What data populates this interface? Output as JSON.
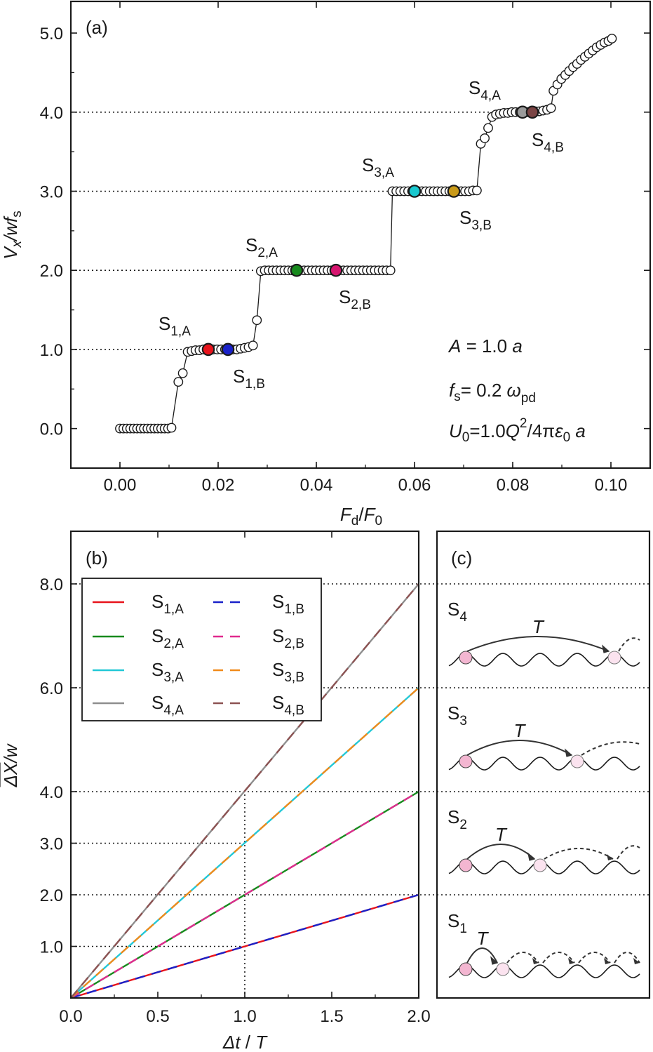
{
  "chart_data": [
    {
      "id": "a",
      "type": "scatter",
      "panel_label": "(a)",
      "xlabel": {
        "main": "F",
        "sub": "d",
        "sep": "/",
        "main2": "F",
        "sub2": "0"
      },
      "ylabel": {
        "main": "V",
        "sub": "x",
        "rest": "/wf",
        "sub2": "s"
      },
      "xlim": [
        -0.01,
        0.108
      ],
      "ylim": [
        -0.5,
        5.4
      ],
      "xticks": [
        0.0,
        0.02,
        0.04,
        0.06,
        0.08,
        0.1
      ],
      "xtick_labels": [
        "0.00",
        "0.02",
        "0.04",
        "0.06",
        "0.08",
        "0.10"
      ],
      "yticks": [
        0.0,
        1.0,
        2.0,
        3.0,
        4.0,
        5.0
      ],
      "ytick_labels": [
        "0.0",
        "1.0",
        "2.0",
        "3.0",
        "4.0",
        "5.0"
      ],
      "guide_levels": [
        1.0,
        2.0,
        3.0,
        4.0
      ],
      "series": [
        {
          "name": "Vx/wfs",
          "points": [
            [
              0.0,
              0
            ],
            [
              0.0007,
              0
            ],
            [
              0.0014,
              0
            ],
            [
              0.0021,
              0
            ],
            [
              0.0028,
              0
            ],
            [
              0.0035,
              0
            ],
            [
              0.0042,
              0
            ],
            [
              0.0049,
              0
            ],
            [
              0.0056,
              0
            ],
            [
              0.0063,
              0
            ],
            [
              0.007,
              0
            ],
            [
              0.0077,
              0
            ],
            [
              0.0084,
              0
            ],
            [
              0.0091,
              0
            ],
            [
              0.0098,
              0
            ],
            [
              0.0105,
              0.01
            ],
            [
              0.0119,
              0.59
            ],
            [
              0.0128,
              0.7
            ],
            [
              0.0138,
              0.97
            ],
            [
              0.0146,
              0.98
            ],
            [
              0.0154,
              0.99
            ],
            [
              0.0162,
              0.99
            ],
            [
              0.017,
              1.0
            ],
            [
              0.0178,
              1.0
            ],
            [
              0.019,
              1.0
            ],
            [
              0.0198,
              1.0
            ],
            [
              0.0206,
              1.0
            ],
            [
              0.0214,
              1.0
            ],
            [
              0.023,
              1.0
            ],
            [
              0.0238,
              1.0
            ],
            [
              0.0246,
              1.01
            ],
            [
              0.0254,
              1.02
            ],
            [
              0.0262,
              1.03
            ],
            [
              0.0271,
              1.05
            ],
            [
              0.0279,
              1.37
            ],
            [
              0.0287,
              1.99
            ],
            [
              0.0295,
              2.0
            ],
            [
              0.0303,
              2.0
            ],
            [
              0.0311,
              2.0
            ],
            [
              0.0319,
              2.0
            ],
            [
              0.0327,
              2.0
            ],
            [
              0.0335,
              2.0
            ],
            [
              0.0343,
              2.0
            ],
            [
              0.0351,
              2.0
            ],
            [
              0.0359,
              2.0
            ],
            [
              0.0375,
              2.0
            ],
            [
              0.0383,
              2.0
            ],
            [
              0.0391,
              2.0
            ],
            [
              0.0399,
              2.0
            ],
            [
              0.0407,
              2.0
            ],
            [
              0.0415,
              2.0
            ],
            [
              0.0423,
              2.0
            ],
            [
              0.0431,
              2.0
            ],
            [
              0.0447,
              2.0
            ],
            [
              0.0455,
              2.0
            ],
            [
              0.0463,
              2.0
            ],
            [
              0.0471,
              2.0
            ],
            [
              0.0479,
              2.0
            ],
            [
              0.0487,
              2.0
            ],
            [
              0.0495,
              2.0
            ],
            [
              0.0503,
              2.0
            ],
            [
              0.0511,
              2.0
            ],
            [
              0.0519,
              2.0
            ],
            [
              0.0527,
              2.0
            ],
            [
              0.0535,
              2.0
            ],
            [
              0.0543,
              2.0
            ],
            [
              0.0551,
              2.0
            ],
            [
              0.0555,
              3.0
            ],
            [
              0.0563,
              3.0
            ],
            [
              0.0571,
              3.0
            ],
            [
              0.0579,
              3.0
            ],
            [
              0.0587,
              3.0
            ],
            [
              0.0595,
              3.0
            ],
            [
              0.0607,
              3.0
            ],
            [
              0.0615,
              3.0
            ],
            [
              0.0623,
              3.0
            ],
            [
              0.0631,
              3.0
            ],
            [
              0.0639,
              3.0
            ],
            [
              0.0647,
              3.0
            ],
            [
              0.0655,
              3.0
            ],
            [
              0.0663,
              3.0
            ],
            [
              0.0671,
              3.0
            ],
            [
              0.0687,
              3.0
            ],
            [
              0.0695,
              3.0
            ],
            [
              0.0703,
              3.0
            ],
            [
              0.0711,
              3.0
            ],
            [
              0.0719,
              3.01
            ],
            [
              0.0727,
              3.01
            ],
            [
              0.0735,
              3.6
            ],
            [
              0.0743,
              3.67
            ],
            [
              0.075,
              3.8
            ],
            [
              0.0758,
              3.94
            ],
            [
              0.0766,
              3.97
            ],
            [
              0.0774,
              3.98
            ],
            [
              0.0782,
              3.99
            ],
            [
              0.079,
              3.99
            ],
            [
              0.0798,
              4.0
            ],
            [
              0.0806,
              4.0
            ],
            [
              0.0814,
              4.0
            ],
            [
              0.083,
              4.0
            ],
            [
              0.0846,
              4.01
            ],
            [
              0.0854,
              4.01
            ],
            [
              0.0862,
              4.02
            ],
            [
              0.087,
              4.03
            ],
            [
              0.0878,
              4.05
            ],
            [
              0.0883,
              4.27
            ],
            [
              0.0891,
              4.35
            ],
            [
              0.0899,
              4.42
            ],
            [
              0.0907,
              4.47
            ],
            [
              0.0915,
              4.52
            ],
            [
              0.0923,
              4.57
            ],
            [
              0.0931,
              4.61
            ],
            [
              0.0939,
              4.66
            ],
            [
              0.0947,
              4.7
            ],
            [
              0.0955,
              4.74
            ],
            [
              0.0963,
              4.78
            ],
            [
              0.0971,
              4.82
            ],
            [
              0.0979,
              4.85
            ],
            [
              0.0987,
              4.88
            ],
            [
              0.0995,
              4.9
            ],
            [
              0.1002,
              4.93
            ]
          ]
        }
      ],
      "highlights": [
        {
          "name": "S1,A",
          "label": "S",
          "sub": "1,A",
          "x": 0.018,
          "y": 1.0,
          "color": "#e8141c"
        },
        {
          "name": "S1,B",
          "label": "S",
          "sub": "1,B",
          "x": 0.022,
          "y": 1.0,
          "color": "#1a22c9"
        },
        {
          "name": "S2,A",
          "label": "S",
          "sub": "2,A",
          "x": 0.036,
          "y": 2.0,
          "color": "#178a1d"
        },
        {
          "name": "S2,B",
          "label": "S",
          "sub": "2,B",
          "x": 0.044,
          "y": 2.0,
          "color": "#d6156f"
        },
        {
          "name": "S3,A",
          "label": "S",
          "sub": "3,A",
          "x": 0.06,
          "y": 3.0,
          "color": "#19c8cf"
        },
        {
          "name": "S3,B",
          "label": "S",
          "sub": "3,B",
          "x": 0.068,
          "y": 3.0,
          "color": "#c99a19"
        },
        {
          "name": "S4,A",
          "label": "S",
          "sub": "4,A",
          "x": 0.082,
          "y": 4.0,
          "color": "#9a9a9a"
        },
        {
          "name": "S4,B",
          "label": "S",
          "sub": "4,B",
          "x": 0.084,
          "y": 4.0,
          "color": "#7a4444"
        }
      ],
      "params": [
        {
          "lhs": "A",
          "eq": " = 1.0",
          "rhs": "a"
        },
        {
          "lhs": "f",
          "lhs_sub": "s",
          "eq": "= 0.2",
          "rhs": "ω",
          "rhs_sub": "pd"
        },
        {
          "lhs": "U",
          "lhs_sub": "0",
          "eq": "=1.0",
          "rhs": "Q",
          "rhs_sup": "2",
          "tail": "/4π",
          "tail2": "ε",
          "tail2_sub": "0",
          "tail3": " a"
        }
      ]
    },
    {
      "id": "b",
      "type": "line",
      "panel_label": "(b)",
      "xlabel": {
        "main": "Δt",
        "rest": " / ",
        "main2": "T"
      },
      "ylabel": {
        "main": "ΔX",
        "rest": "/w"
      },
      "xlim": [
        0.0,
        2.0
      ],
      "ylim": [
        0.0,
        9.0
      ],
      "y_axis_mapping": "piecewise: equal spacing for 0–4 per unit; 4–8 compressed (2 units per major step)",
      "xticks": [
        0.0,
        0.5,
        1.0,
        1.5,
        2.0
      ],
      "xtick_labels": [
        "0.0",
        "0.5",
        "1.0",
        "1.5",
        "2.0"
      ],
      "yticks": [
        1.0,
        2.0,
        3.0,
        4.0,
        6.0,
        8.0
      ],
      "ytick_labels": [
        "1.0",
        "2.0",
        "3.0",
        "4.0",
        "6.0",
        "8.0"
      ],
      "guide_levels": [
        1.0,
        2.0,
        3.0,
        4.0,
        6.0,
        8.0
      ],
      "vertical_guide": 1.0,
      "series": [
        {
          "name": "S1,A",
          "sub": "1,A",
          "style": "solid",
          "color": "#e8141c",
          "x": [
            0,
            0.9,
            1.0,
            2.0
          ],
          "y": [
            0,
            0.9,
            1.0,
            2.0
          ]
        },
        {
          "name": "S1,B",
          "sub": "1,B",
          "style": "dashed",
          "color": "#1a22c9",
          "x": [
            0,
            0.9,
            1.0,
            2.0
          ],
          "y": [
            0,
            0.9,
            1.0,
            2.0
          ]
        },
        {
          "name": "S2,A",
          "sub": "2,A",
          "style": "solid",
          "color": "#178a1d",
          "x": [
            0,
            2.0
          ],
          "y": [
            0,
            4.0
          ]
        },
        {
          "name": "S2,B",
          "sub": "2,B",
          "style": "dashed",
          "color": "#e02a8e",
          "x": [
            0,
            2.0
          ],
          "y": [
            0,
            4.0
          ]
        },
        {
          "name": "S3,A",
          "sub": "3,A",
          "style": "solid",
          "color": "#22c8d6",
          "x": [
            0,
            2.0
          ],
          "y": [
            0,
            6.0
          ]
        },
        {
          "name": "S3,B",
          "sub": "3,B",
          "style": "dashed",
          "color": "#f08a1a",
          "x": [
            0,
            2.0
          ],
          "y": [
            0,
            6.0
          ]
        },
        {
          "name": "S4,A",
          "sub": "4,A",
          "style": "solid",
          "color": "#8e8e8e",
          "x": [
            0,
            2.0
          ],
          "y": [
            0,
            8.0
          ]
        },
        {
          "name": "S4,B",
          "sub": "4,B",
          "style": "dashed",
          "color": "#8c5353",
          "x": [
            0,
            2.0
          ],
          "y": [
            0,
            8.0
          ]
        }
      ],
      "legend_position": "top-left"
    },
    {
      "id": "c",
      "type": "schematic",
      "panel_label": "(c)",
      "rows": [
        {
          "label": "S",
          "sub": "4",
          "arrow_label": "T",
          "periods_per_T": 4
        },
        {
          "label": "S",
          "sub": "3",
          "arrow_label": "T",
          "periods_per_T": 3
        },
        {
          "label": "S",
          "sub": "2",
          "arrow_label": "T",
          "periods_per_T": 2
        },
        {
          "label": "S",
          "sub": "1",
          "arrow_label": "T",
          "periods_per_T": 1
        }
      ]
    }
  ]
}
